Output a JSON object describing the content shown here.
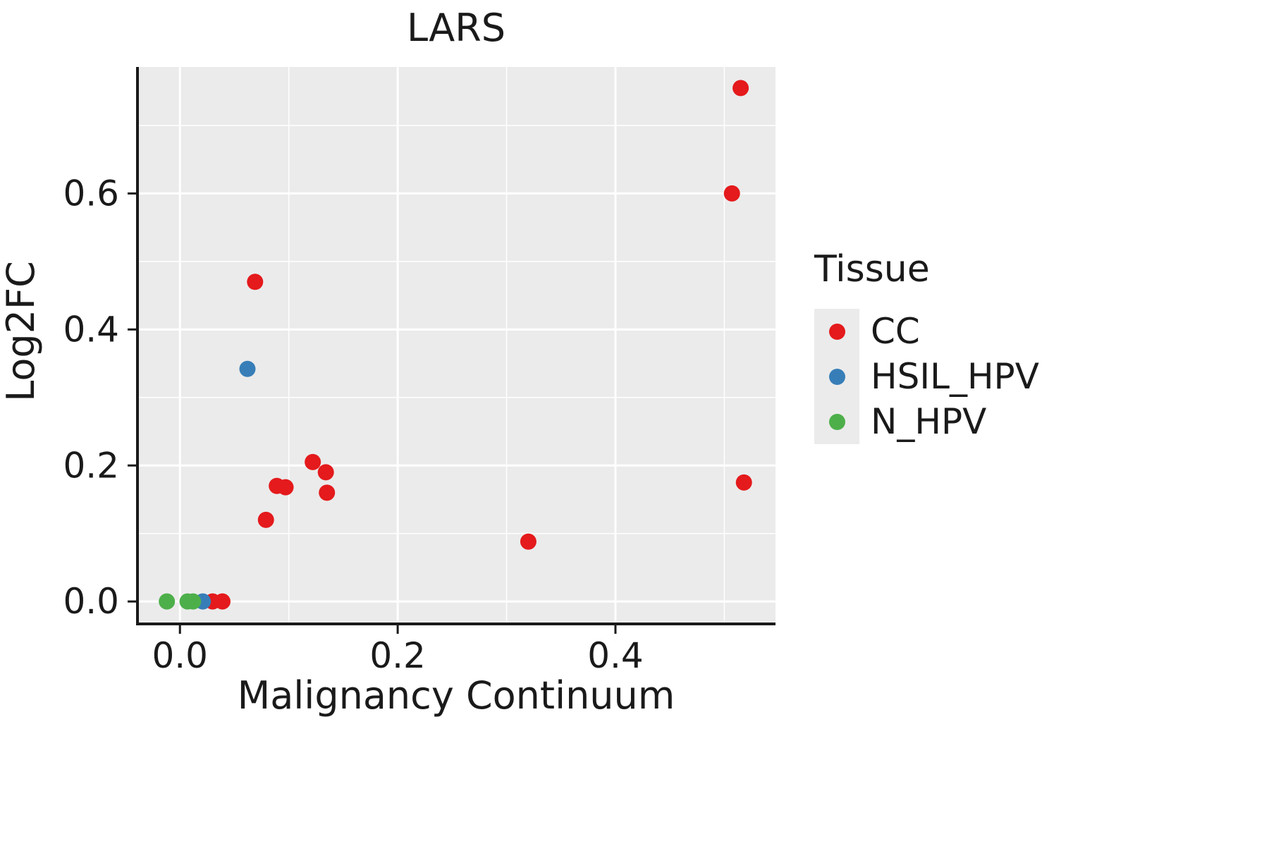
{
  "chart_data": {
    "type": "scatter",
    "title": "LARS",
    "xlabel": "Malignancy Continuum",
    "ylabel": "Log2FC",
    "legend_title": "Tissue",
    "legend_position": "right",
    "grid": true,
    "panel_bg": "#EBEBEB",
    "grid_color": "#FFFFFF",
    "axis_color": "#1a1a1a",
    "xlim": [
      -0.039,
      0.547
    ],
    "ylim": [
      -0.033,
      0.786
    ],
    "x_ticks": [
      0.0,
      0.2,
      0.4
    ],
    "x_tick_labels": [
      "0.0",
      "0.2",
      "0.4"
    ],
    "y_ticks": [
      0.0,
      0.2,
      0.4,
      0.6
    ],
    "y_tick_labels": [
      "0.0",
      "0.2",
      "0.4",
      "0.6"
    ],
    "x_minor_ticks": [
      0.1,
      0.3,
      0.5
    ],
    "y_minor_ticks": [
      0.1,
      0.3,
      0.5,
      0.7
    ],
    "series": [
      {
        "name": "CC",
        "color": "#E41A1C",
        "points": [
          [
            0.515,
            0.755
          ],
          [
            0.507,
            0.6
          ],
          [
            0.069,
            0.47
          ],
          [
            0.122,
            0.205
          ],
          [
            0.134,
            0.19
          ],
          [
            0.089,
            0.17
          ],
          [
            0.097,
            0.168
          ],
          [
            0.135,
            0.16
          ],
          [
            0.518,
            0.175
          ],
          [
            0.079,
            0.12
          ],
          [
            0.32,
            0.088
          ],
          [
            0.03,
            0.0
          ],
          [
            0.039,
            0.0
          ]
        ]
      },
      {
        "name": "HSIL_HPV",
        "color": "#377EB8",
        "points": [
          [
            0.062,
            0.342
          ],
          [
            0.021,
            0.0
          ]
        ]
      },
      {
        "name": "N_HPV",
        "color": "#4DAF4A",
        "points": [
          [
            -0.012,
            0.0
          ],
          [
            0.007,
            0.0
          ],
          [
            0.012,
            0.0
          ]
        ]
      }
    ]
  }
}
